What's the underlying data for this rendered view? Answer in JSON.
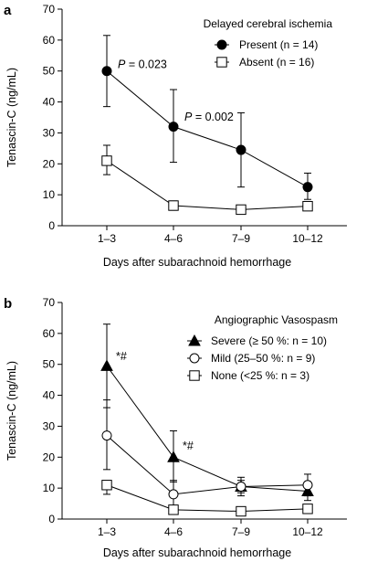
{
  "chart_data": [
    {
      "type": "line",
      "panel_label": "a",
      "xlabel": "Days after subarachnoid hemorrhage",
      "ylabel": "Tenascin-C (ng/mL)",
      "ylim": [
        0,
        70
      ],
      "yticks": [
        0,
        10,
        20,
        30,
        40,
        50,
        60,
        70
      ],
      "categories": [
        "1–3",
        "4–6",
        "7–9",
        "10–12"
      ],
      "grid": false,
      "legend_position": "top-right",
      "legend_title": "Delayed cerebral ischemia",
      "series": [
        {
          "name": "Present (n = 14)",
          "marker": "filled-circle",
          "values": [
            50,
            32,
            24.5,
            12.5
          ],
          "error_upper": [
            61.5,
            44,
            36.5,
            17
          ],
          "error_lower": [
            38.5,
            20.5,
            12.5,
            8.5
          ]
        },
        {
          "name": "Absent (n = 16)",
          "marker": "open-square",
          "values": [
            21,
            6.5,
            5.2,
            6.3
          ],
          "error_upper": [
            26,
            8,
            6,
            7.5
          ],
          "error_lower": [
            16.5,
            5,
            4.5,
            5
          ]
        }
      ],
      "annotations": [
        {
          "label_italic": "P",
          "label_rest": " = 0.023",
          "x_index": 0,
          "y": 51
        },
        {
          "label_italic": "P",
          "label_rest": " = 0.002",
          "x_index": 1,
          "y": 34
        }
      ]
    },
    {
      "type": "line",
      "panel_label": "b",
      "xlabel": "Days after subarachnoid hemorrhage",
      "ylabel": "Tenascin-C (ng/mL)",
      "ylim": [
        0,
        70
      ],
      "yticks": [
        0,
        10,
        20,
        30,
        40,
        50,
        60,
        70
      ],
      "categories": [
        "1–3",
        "4–6",
        "7–9",
        "10–12"
      ],
      "grid": false,
      "legend_position": "top-right",
      "legend_title": "Angiographic Vasospasm",
      "series": [
        {
          "name": "Severe (≥ 50 %: n = 10)",
          "marker": "filled-triangle",
          "values": [
            49.5,
            20,
            10.5,
            9
          ],
          "error_upper": [
            63,
            28.5,
            13.5,
            12
          ],
          "error_lower": [
            36,
            12,
            7.5,
            6
          ]
        },
        {
          "name": "Mild (25–50 %: n = 9)",
          "marker": "open-circle",
          "values": [
            27,
            8,
            10.5,
            11
          ],
          "error_upper": [
            38.5,
            12.5,
            12.5,
            14.5
          ],
          "error_lower": [
            16,
            3.5,
            8.5,
            7.5
          ]
        },
        {
          "name": "None (<25 %: n = 3)",
          "marker": "open-square",
          "values": [
            11,
            3,
            2.5,
            3.3
          ],
          "error_upper": [
            11,
            3,
            2.5,
            3.3
          ],
          "error_lower": [
            8,
            3,
            2.5,
            3.3
          ]
        }
      ],
      "annotations": [
        {
          "label": "*#",
          "x_index": 0,
          "y": 52
        },
        {
          "label": "*#",
          "x_index": 1,
          "y": 23
        }
      ]
    }
  ]
}
